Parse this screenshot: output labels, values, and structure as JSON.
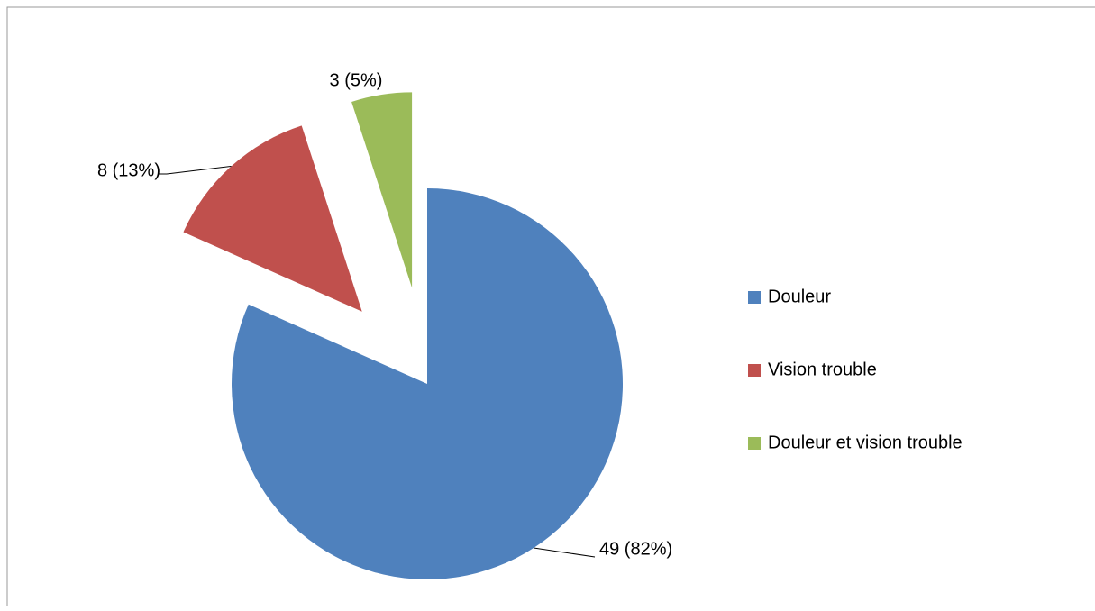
{
  "chart_data": {
    "type": "pie",
    "categories": [
      "Douleur",
      "Vision trouble",
      "Douleur et vision trouble"
    ],
    "values": [
      49,
      8,
      3
    ],
    "value_labels": [
      "49 (82%)",
      "8 (13%)",
      "3 (5%)"
    ],
    "colors": [
      "#4f81bd",
      "#c0504d",
      "#9bbb59"
    ],
    "legend": "right"
  }
}
